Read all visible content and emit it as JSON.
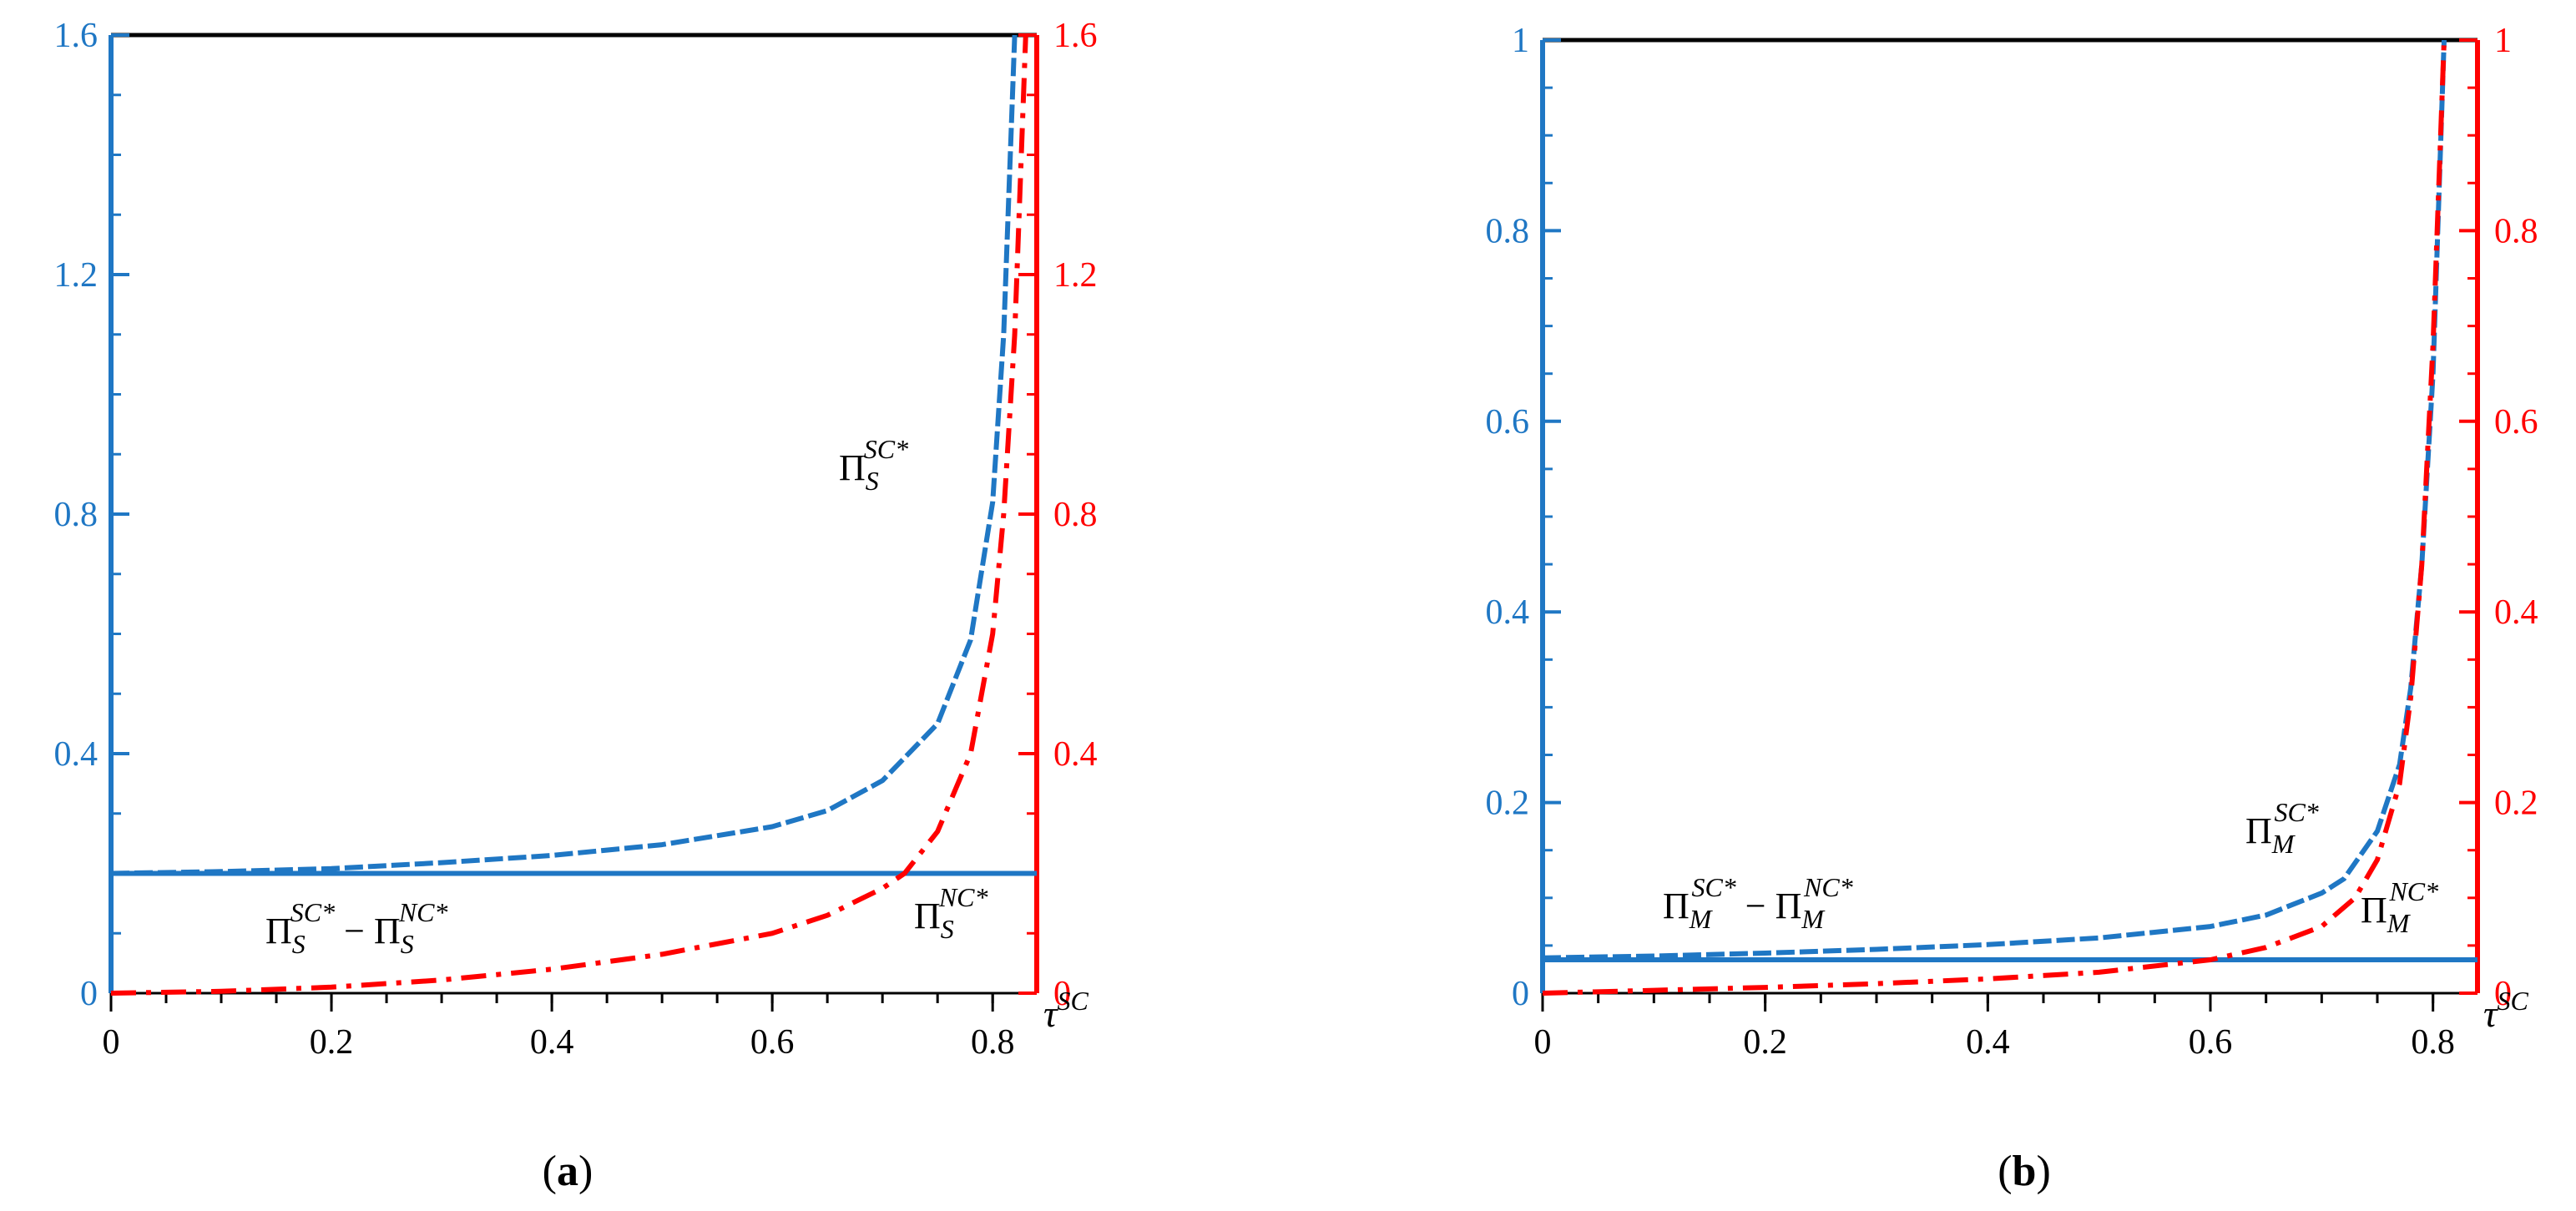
{
  "colors": {
    "left_axis": "#1f77c4",
    "right_axis": "#ff0000",
    "frame": "#000000"
  },
  "chart_data": [
    {
      "panel": "a",
      "type": "line",
      "caption": {
        "open": "(",
        "letter": "a",
        "close": ")"
      },
      "xlabel": {
        "base": "τ",
        "sup": "SC"
      },
      "xlim": [
        0,
        0.84
      ],
      "x_ticks": [
        "0",
        "0.2",
        "0.4",
        "0.6",
        "0.8"
      ],
      "x_tick_values": [
        0,
        0.2,
        0.4,
        0.6,
        0.8
      ],
      "left_axis": {
        "ylim": [
          0,
          1.6
        ],
        "ticks": [
          "0",
          "0.4",
          "0.8",
          "1.2",
          "1.6"
        ],
        "tick_values": [
          0,
          0.4,
          0.8,
          1.2,
          1.6
        ],
        "minor_step": 0.1
      },
      "right_axis": {
        "ylim": [
          0,
          1.6
        ],
        "ticks": [
          "0",
          "0.4",
          "0.8",
          "1.2",
          "1.6"
        ],
        "tick_values": [
          0,
          0.4,
          0.8,
          1.2,
          1.6
        ],
        "minor_step": 0.1
      },
      "series": [
        {
          "name": "Π_S^{SC*}",
          "axis": "left",
          "style": "dashed",
          "color": "#1f77c4",
          "x": [
            0,
            0.1,
            0.2,
            0.3,
            0.4,
            0.5,
            0.6,
            0.65,
            0.7,
            0.75,
            0.78,
            0.8,
            0.81,
            0.815,
            0.82
          ],
          "y": [
            0.2,
            0.203,
            0.208,
            0.218,
            0.23,
            0.248,
            0.278,
            0.305,
            0.355,
            0.45,
            0.59,
            0.82,
            1.1,
            1.35,
            1.6
          ]
        },
        {
          "name": "Π_S^{SC*} − Π_S^{NC*}",
          "axis": "left",
          "style": "solid",
          "color": "#1f77c4",
          "x": [
            0,
            0.84
          ],
          "y": [
            0.2,
            0.2
          ]
        },
        {
          "name": "Π_S^{NC*}",
          "axis": "right",
          "style": "dashdot",
          "color": "#ff0000",
          "x": [
            0,
            0.1,
            0.2,
            0.3,
            0.4,
            0.5,
            0.6,
            0.65,
            0.7,
            0.72,
            0.75,
            0.78,
            0.8,
            0.81,
            0.82,
            0.825,
            0.83
          ],
          "y": [
            0,
            0.003,
            0.01,
            0.022,
            0.04,
            0.065,
            0.1,
            0.13,
            0.175,
            0.2,
            0.27,
            0.4,
            0.6,
            0.8,
            1.1,
            1.35,
            1.6
          ]
        }
      ],
      "annotations": [
        {
          "base": "Π",
          "sub": "S",
          "sup": "SC*"
        },
        {
          "base": "Π",
          "sub": "S",
          "sup": "SC*",
          "mid": " − Π",
          "sub2": "S",
          "sup2": "NC*"
        },
        {
          "base": "Π",
          "sub": "S",
          "sup": "NC*"
        }
      ]
    },
    {
      "panel": "b",
      "type": "line",
      "caption": {
        "open": "(",
        "letter": "b",
        "close": ")"
      },
      "xlabel": {
        "base": "τ",
        "sup": "SC"
      },
      "xlim": [
        0,
        0.84
      ],
      "x_ticks": [
        "0",
        "0.2",
        "0.4",
        "0.6",
        "0.8"
      ],
      "x_tick_values": [
        0,
        0.2,
        0.4,
        0.6,
        0.8
      ],
      "left_axis": {
        "ylim": [
          0,
          1
        ],
        "ticks": [
          "0",
          "0.2",
          "0.4",
          "0.6",
          "0.8",
          "1"
        ],
        "tick_values": [
          0,
          0.2,
          0.4,
          0.6,
          0.8,
          1
        ],
        "minor_step": 0.05
      },
      "right_axis": {
        "ylim": [
          0,
          1
        ],
        "ticks": [
          "0",
          "0.2",
          "0.4",
          "0.6",
          "0.8",
          "1"
        ],
        "tick_values": [
          0,
          0.2,
          0.4,
          0.6,
          0.8,
          1
        ],
        "minor_step": 0.05
      },
      "series": [
        {
          "name": "Π_M^{SC*}",
          "axis": "left",
          "style": "dashed",
          "color": "#1f77c4",
          "x": [
            0,
            0.1,
            0.2,
            0.3,
            0.4,
            0.5,
            0.6,
            0.65,
            0.7,
            0.72,
            0.75,
            0.77,
            0.78,
            0.79,
            0.8,
            0.81
          ],
          "y": [
            0.037,
            0.039,
            0.042,
            0.046,
            0.051,
            0.058,
            0.07,
            0.082,
            0.105,
            0.12,
            0.17,
            0.24,
            0.32,
            0.45,
            0.65,
            1.0
          ]
        },
        {
          "name": "Π_M^{SC*} − Π_M^{NC*}",
          "axis": "left",
          "style": "solid",
          "color": "#1f77c4",
          "x": [
            0,
            0.84
          ],
          "y": [
            0.035,
            0.035
          ]
        },
        {
          "name": "Π_M^{NC*}",
          "axis": "right",
          "style": "dashdot",
          "color": "#ff0000",
          "x": [
            0,
            0.1,
            0.2,
            0.3,
            0.4,
            0.5,
            0.6,
            0.65,
            0.7,
            0.73,
            0.75,
            0.77,
            0.78,
            0.79,
            0.8,
            0.81
          ],
          "y": [
            0,
            0.003,
            0.006,
            0.01,
            0.015,
            0.022,
            0.035,
            0.048,
            0.07,
            0.1,
            0.14,
            0.22,
            0.31,
            0.45,
            0.68,
            1.0
          ]
        }
      ],
      "annotations": [
        {
          "base": "Π",
          "sub": "M",
          "sup": "SC*"
        },
        {
          "base": "Π",
          "sub": "M",
          "sup": "SC*",
          "mid": " − Π",
          "sub2": "M",
          "sup2": "NC*"
        },
        {
          "base": "Π",
          "sub": "M",
          "sup": "NC*"
        }
      ]
    }
  ]
}
